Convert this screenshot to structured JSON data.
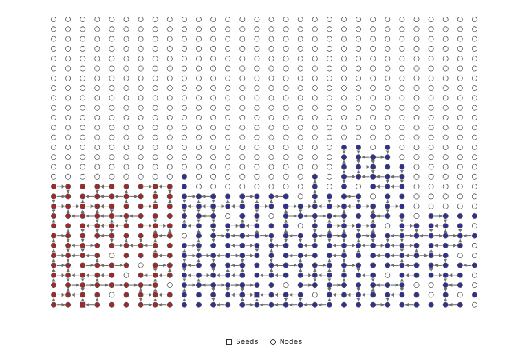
{
  "diagram": {
    "grid": {
      "columns": 30,
      "rows": 30
    },
    "colors": {
      "empty": "#ffffff",
      "red": "#a02828",
      "blue": "#2e3192",
      "edge": "#6f6f6f"
    },
    "clusters": [
      {
        "color": "red",
        "col_range": [
          0,
          9
        ],
        "base_top_row": 17
      },
      {
        "color": "blue",
        "col_range": [
          9,
          29
        ],
        "base_top_row": 18
      }
    ],
    "seeds": [
      {
        "color": "red",
        "col": 2,
        "row": 29
      },
      {
        "color": "blue",
        "col": 14,
        "row": 28
      }
    ]
  },
  "legend": {
    "items": [
      {
        "label": "Seeds",
        "icon": "square-icon"
      },
      {
        "label": "Nodes",
        "icon": "circle-icon"
      }
    ]
  }
}
